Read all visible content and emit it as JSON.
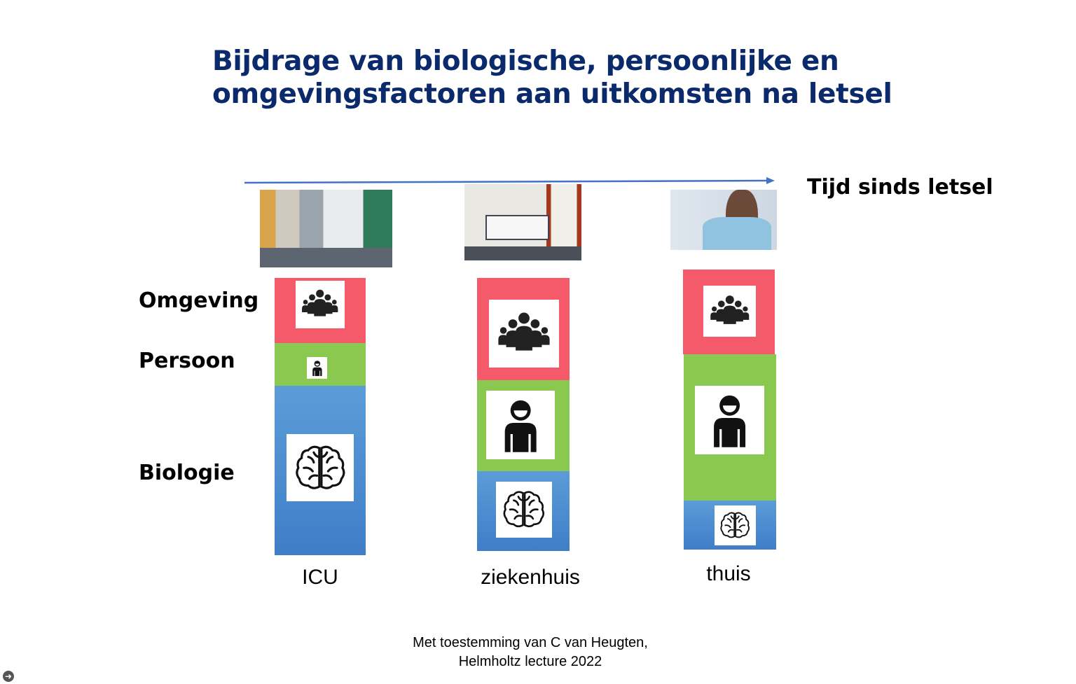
{
  "title": {
    "line1": "Bijdrage van biologische, persoonlijke en",
    "line2": "omgevingsfactoren aan uitkomsten na letsel"
  },
  "time_axis": {
    "label": "Tijd sinds letsel"
  },
  "factor_labels": {
    "environment": "Omgeving",
    "person": "Persoon",
    "biology": "Biologie"
  },
  "stages": [
    {
      "label": "ICU",
      "photo": "icu-photo",
      "shares": {
        "environment": 0.23,
        "person": 0.15,
        "biology": 0.62
      }
    },
    {
      "label": "ziekenhuis",
      "photo": "hospital-room-photo",
      "shares": {
        "environment": 0.37,
        "person": 0.34,
        "biology": 0.29
      }
    },
    {
      "label": "thuis",
      "photo": "home-photo",
      "shares": {
        "environment": 0.3,
        "person": 0.52,
        "biology": 0.18
      }
    }
  ],
  "icons": {
    "environment": "group-icon",
    "person": "person-icon",
    "biology": "brain-icon",
    "nav": "arrow-right-icon"
  },
  "colors": {
    "title": "#0b2a6b",
    "axis": "#4472c4",
    "environment": "#f55a6b",
    "person": "#8bc850",
    "biology": "#4f8ed1"
  },
  "credit": {
    "line1": "Met toestemming van C van Heugten,",
    "line2": "Helmholtz lecture 2022"
  }
}
